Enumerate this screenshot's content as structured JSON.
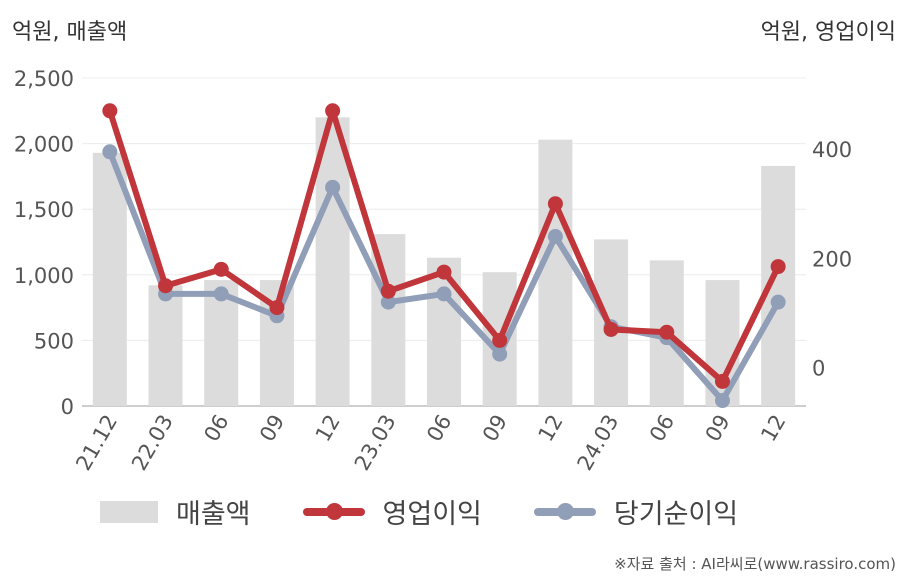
{
  "labels": {
    "left_unit": "억원, 매출액",
    "right_unit": "억원, 영업이익",
    "source": "※자료 출처 : AI라씨로(www.rassiro.com)"
  },
  "legend": [
    {
      "name": "매출액",
      "kind": "bar",
      "color": "#dcdcdc"
    },
    {
      "name": "영업이익",
      "kind": "line",
      "color": "#c0363a"
    },
    {
      "name": "당기순이익",
      "kind": "line",
      "color": "#919eb8"
    }
  ],
  "chart_data": {
    "type": "bar",
    "categories": [
      "21.12",
      "22.03",
      "06",
      "09",
      "12",
      "23.03",
      "06",
      "09",
      "12",
      "24.03",
      "06",
      "09",
      "12"
    ],
    "left_axis": {
      "min": 0,
      "max": 2500,
      "ticks": [
        0,
        500,
        1000,
        1500,
        2000,
        2500
      ],
      "tick_labels": [
        "0",
        "500",
        "1,000",
        "1,500",
        "2,000",
        "2,500"
      ]
    },
    "right_axis": {
      "min": -70,
      "max": 530,
      "ticks": [
        0,
        200,
        400
      ],
      "tick_labels": [
        "0",
        "200",
        "400"
      ]
    },
    "series": [
      {
        "name": "매출액",
        "type": "bar",
        "axis": "left",
        "color": "#dcdcdc",
        "values": [
          1930,
          920,
          960,
          960,
          2200,
          1310,
          1130,
          1020,
          2030,
          1270,
          1110,
          960,
          1830
        ]
      },
      {
        "name": "영업이익",
        "type": "line",
        "axis": "right",
        "color": "#c0363a",
        "values": [
          470,
          150,
          180,
          110,
          470,
          140,
          175,
          50,
          300,
          70,
          65,
          -25,
          185
        ]
      },
      {
        "name": "당기순이익",
        "type": "line",
        "axis": "right",
        "color": "#919eb8",
        "values": [
          395,
          135,
          135,
          95,
          330,
          120,
          135,
          25,
          240,
          75,
          55,
          -60,
          120
        ]
      }
    ],
    "grid": true,
    "legend_position": "bottom"
  }
}
